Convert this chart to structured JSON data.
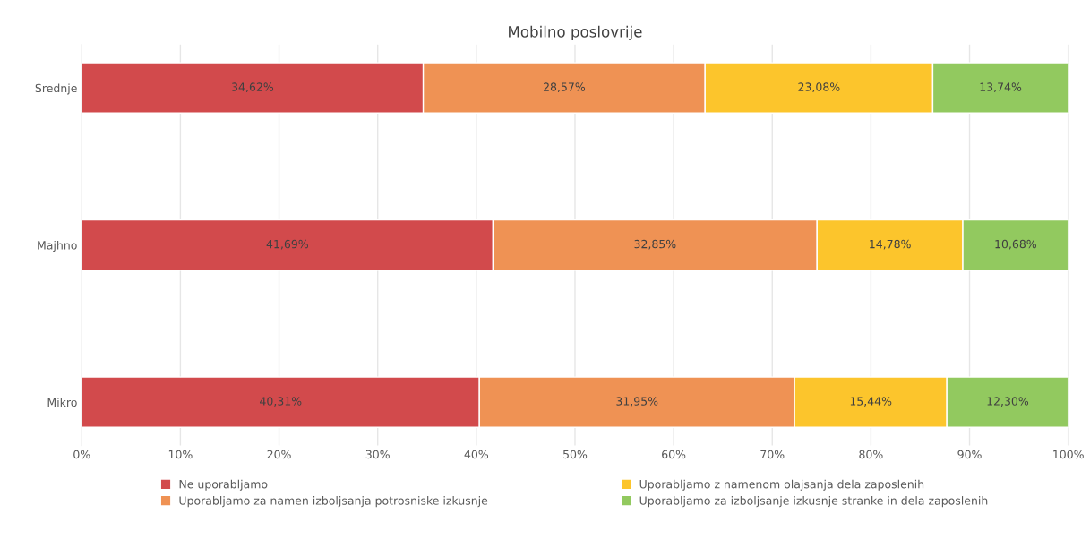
{
  "chart_data": {
    "type": "bar",
    "orientation": "horizontal",
    "stacked": true,
    "title": "Mobilno poslovrije",
    "categories": [
      "Srednje",
      "Majhno",
      "Mikro"
    ],
    "series": [
      {
        "name": "Ne uporabljamo",
        "color": "#d24a4c",
        "values": [
          34.62,
          41.69,
          40.31
        ],
        "value_labels": [
          "34,62%",
          "41,69%",
          "40,31%"
        ]
      },
      {
        "name": "Uporabljamo za namen izboljsanja potrosniske izkusnje",
        "color": "#ef9254",
        "values": [
          28.57,
          32.85,
          31.95
        ],
        "value_labels": [
          "28,57%",
          "32,85%",
          "31,95%"
        ]
      },
      {
        "name": "Uporabljamo z namenom olajsanja dela zaposlenih",
        "color": "#fcc52c",
        "values": [
          23.08,
          14.78,
          15.44
        ],
        "value_labels": [
          "23,08%",
          "14,78%",
          "15,44%"
        ]
      },
      {
        "name": "Uporabljamo za izboljsanje izkusnje stranke in dela zaposlenih",
        "color": "#92c95f",
        "values": [
          13.74,
          10.68,
          12.3
        ],
        "value_labels": [
          "13,74%",
          "10,68%",
          "12,30%"
        ]
      }
    ],
    "xlim": [
      0,
      100
    ],
    "xticks": [
      {
        "value": 0,
        "label": "0%"
      },
      {
        "value": 10,
        "label": "10%"
      },
      {
        "value": 20,
        "label": "20%"
      },
      {
        "value": 30,
        "label": "30%"
      },
      {
        "value": 40,
        "label": "40%"
      },
      {
        "value": 50,
        "label": "50%"
      },
      {
        "value": 60,
        "label": "60%"
      },
      {
        "value": 70,
        "label": "70%"
      },
      {
        "value": 80,
        "label": "80%"
      },
      {
        "value": 90,
        "label": "90%"
      },
      {
        "value": 100,
        "label": "100%"
      }
    ],
    "grid": "x",
    "legend": "bottom"
  }
}
